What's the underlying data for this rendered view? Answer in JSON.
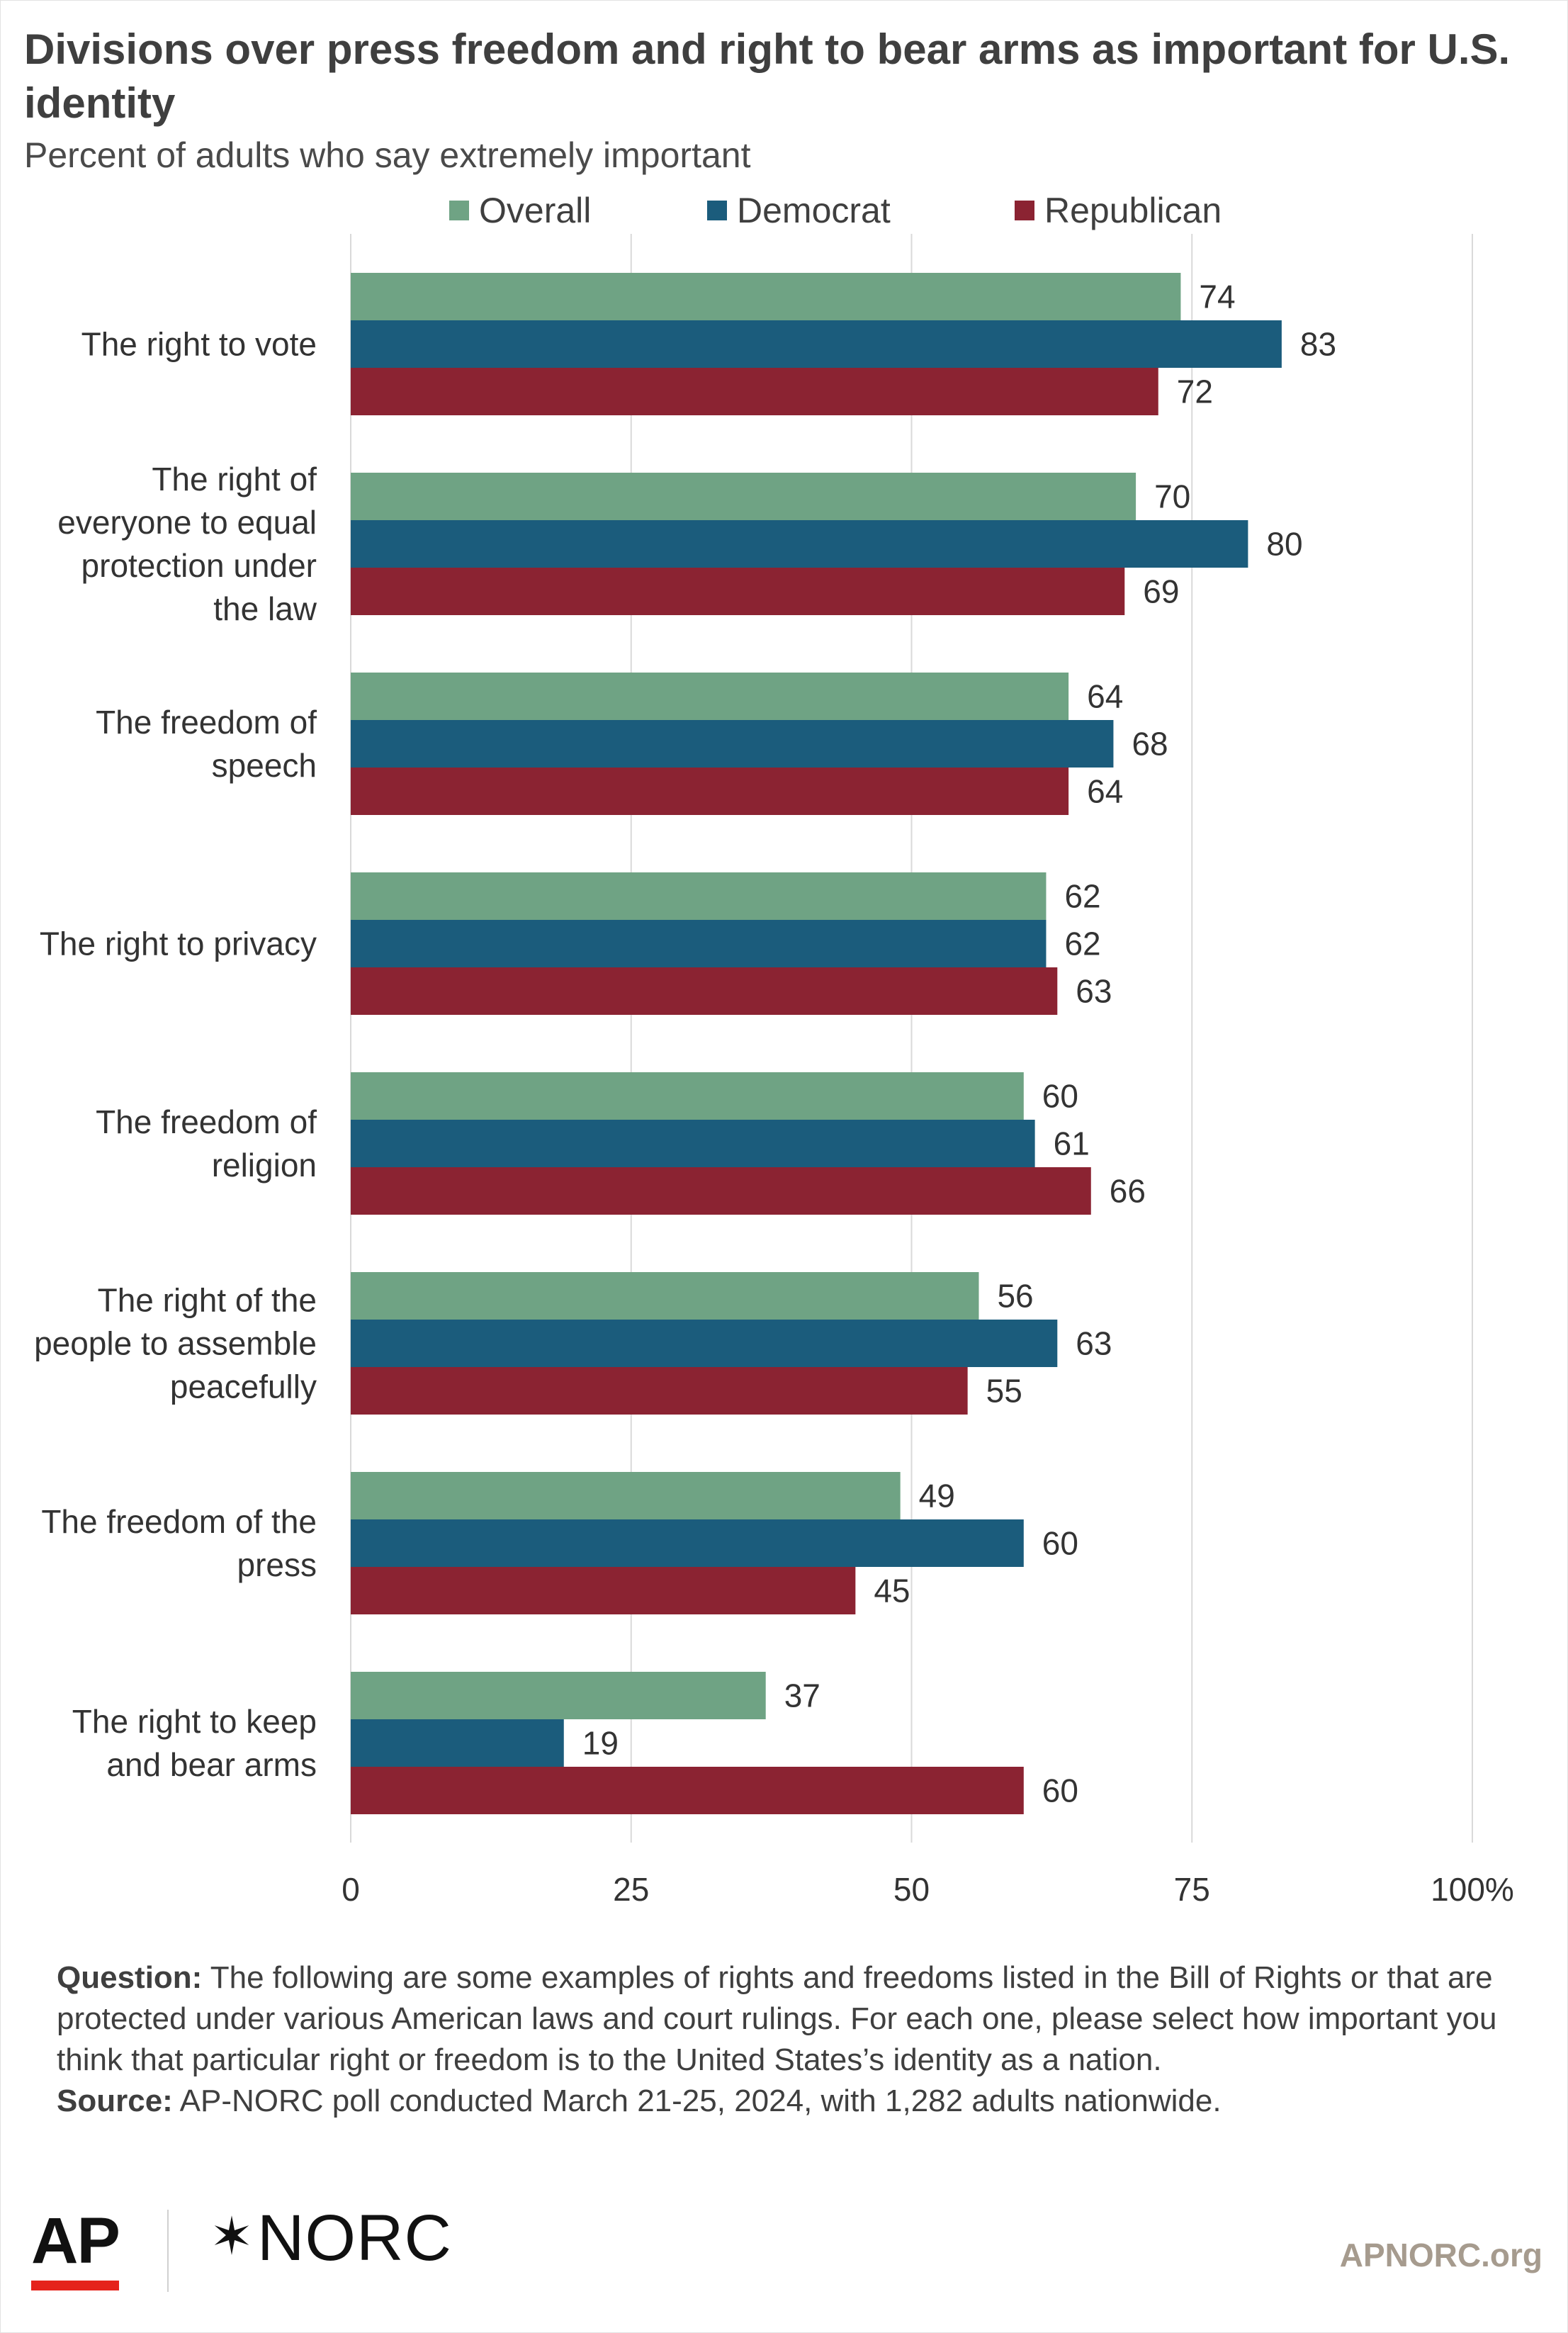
{
  "header": {
    "title": "Divisions over press freedom and right to bear arms as important for U.S. identity",
    "subtitle": "Percent of adults who say extremely important"
  },
  "colors": {
    "overall": "#6fa384",
    "democrat": "#1b5c7c",
    "republican": "#8b2332",
    "grid": "#d9d9d9",
    "text": "#333333"
  },
  "chart_data": {
    "type": "bar",
    "orientation": "horizontal",
    "title": "Divisions over press freedom and right to bear arms as important for U.S. identity",
    "subtitle": "Percent of adults who say extremely important",
    "categories": [
      "The right to vote",
      "The right of everyone to equal protection under the law",
      "The freedom of speech",
      "The right to privacy",
      "The freedom of religion",
      "The right of the people to assemble peacefully",
      "The freedom of the press",
      "The right to keep and bear arms"
    ],
    "category_lines": [
      [
        "The right to vote"
      ],
      [
        "The right of",
        "everyone to equal",
        "protection under",
        "the law"
      ],
      [
        "The freedom of",
        "speech"
      ],
      [
        "The right to privacy"
      ],
      [
        "The freedom of",
        "religion"
      ],
      [
        "The right of the",
        "people to assemble",
        "peacefully"
      ],
      [
        "The freedom of the",
        "press"
      ],
      [
        "The right to keep",
        "and bear arms"
      ]
    ],
    "series": [
      {
        "name": "Overall",
        "values": [
          74,
          70,
          64,
          62,
          60,
          56,
          49,
          37
        ]
      },
      {
        "name": "Democrat",
        "values": [
          83,
          80,
          68,
          62,
          61,
          63,
          60,
          19
        ]
      },
      {
        "name": "Republican",
        "values": [
          72,
          69,
          64,
          63,
          66,
          55,
          45,
          60
        ]
      }
    ],
    "xlim": [
      0,
      100
    ],
    "x_ticks": [
      "0",
      "25",
      "50",
      "75",
      "100%"
    ],
    "grid": true,
    "legend_position": "top"
  },
  "footnote": {
    "question_label": "Question:",
    "question_text": " The following are some examples of rights and freedoms listed in the Bill of Rights or that are protected under various American laws and court rulings. For each one, please select how important you think that particular right or freedom is to the United States’s identity as a nation.",
    "source_label": "Source:",
    "source_text": " AP-NORC poll conducted March 21-25, 2024, with 1,282 adults nationwide."
  },
  "footer": {
    "ap_logo": "AP",
    "norc_star": "✶",
    "norc_logo": "NORC",
    "site": "APNORC.org"
  }
}
